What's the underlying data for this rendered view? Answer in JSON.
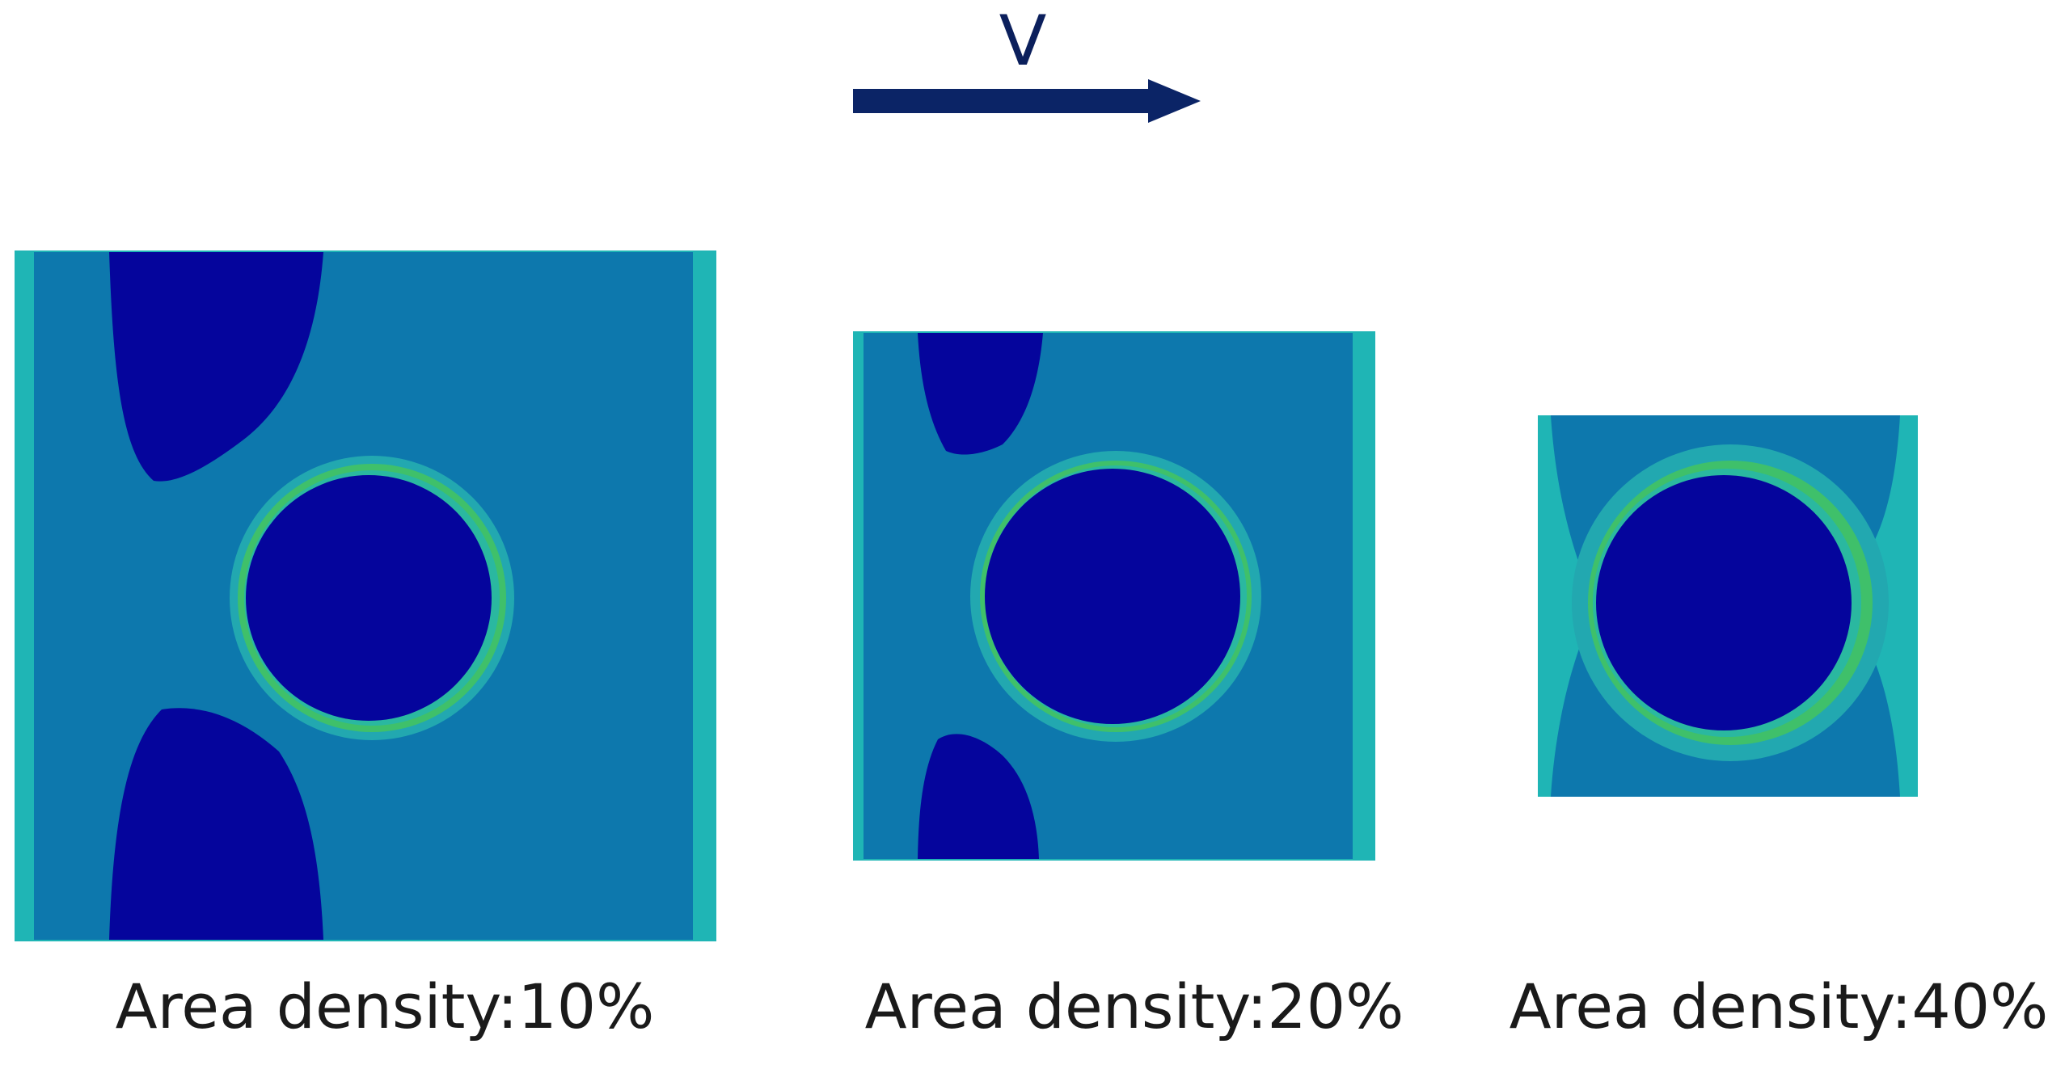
{
  "velocity": {
    "label": "V",
    "arrow_color": "#0b2466"
  },
  "colors": {
    "matrix": "#0d78ad",
    "edge_band": "#1fb5b5",
    "void_blue": "#05059c",
    "ring_inner": "#2ab8a0",
    "ring_mid": "#3fc06a",
    "ring_outer": "#22a8b0"
  },
  "panels": [
    {
      "id": "panel-10",
      "caption": "Area density:10%"
    },
    {
      "id": "panel-20",
      "caption": "Area density:20%"
    },
    {
      "id": "panel-40",
      "caption": "Area density:40%"
    }
  ]
}
